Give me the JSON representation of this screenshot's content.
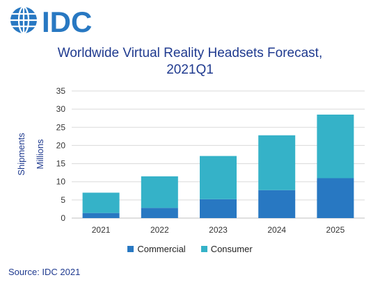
{
  "brand": {
    "logo_text": "IDC"
  },
  "source_text": "Source: IDC 2021",
  "colors": {
    "commercial": "#2878c2",
    "consumer": "#35b2c8",
    "text_blue": "#1f3a8f",
    "grid": "#dadada"
  },
  "chart_data": {
    "type": "bar",
    "stacked": true,
    "title": "Worldwide Virtual Reality Headsets Forecast,",
    "subtitle": "2021Q1",
    "ylabel": "Shipments",
    "ylabel_unit": "Millions",
    "xlabel": "",
    "categories": [
      "2021",
      "2022",
      "2023",
      "2024",
      "2025"
    ],
    "series": [
      {
        "name": "Commercial",
        "values": [
          1.4,
          2.8,
          5.2,
          7.7,
          11.0
        ]
      },
      {
        "name": "Consumer",
        "values": [
          5.6,
          8.7,
          11.9,
          15.1,
          17.5
        ]
      }
    ],
    "ylim": [
      0,
      35
    ],
    "yticks": [
      "0",
      "5",
      "10",
      "15",
      "20",
      "25",
      "30",
      "35"
    ],
    "grid": true,
    "legend_position": "bottom"
  }
}
